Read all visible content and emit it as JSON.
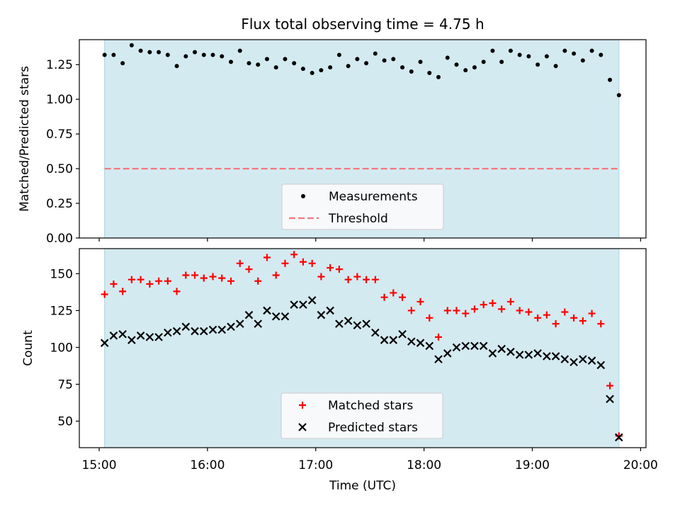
{
  "chart_data": [
    {
      "type": "scatter",
      "title": "Flux total observing time = 4.75 h",
      "xlabel": "",
      "ylabel": "Matched/Predicted stars",
      "xlim": [
        "14:49",
        "20:03"
      ],
      "ylim": [
        0,
        1.43
      ],
      "yticks": [
        "0.00",
        "0.25",
        "0.50",
        "0.75",
        "1.00",
        "1.25"
      ],
      "observing_window": [
        "15:03",
        "19:48"
      ],
      "shade_color": "#d4eaf1",
      "legend": {
        "placement": "lower center",
        "labels": [
          "Measurements",
          "Threshold"
        ]
      },
      "series": [
        {
          "name": "Measurements",
          "marker": "dot",
          "color": "#000000",
          "x": [
            "15:03",
            "15:08",
            "15:13",
            "15:18",
            "15:23",
            "15:28",
            "15:33",
            "15:38",
            "15:43",
            "15:48",
            "15:53",
            "15:58",
            "16:03",
            "16:08",
            "16:13",
            "16:18",
            "16:23",
            "16:28",
            "16:33",
            "16:38",
            "16:43",
            "16:48",
            "16:53",
            "16:58",
            "17:03",
            "17:08",
            "17:13",
            "17:18",
            "17:23",
            "17:28",
            "17:33",
            "17:38",
            "17:43",
            "17:48",
            "17:53",
            "17:58",
            "18:03",
            "18:08",
            "18:13",
            "18:18",
            "18:23",
            "18:28",
            "18:33",
            "18:38",
            "18:43",
            "18:48",
            "18:53",
            "18:58",
            "19:03",
            "19:08",
            "19:13",
            "19:18",
            "19:23",
            "19:28",
            "19:33",
            "19:38",
            "19:43",
            "19:48"
          ],
          "y": [
            1.32,
            1.32,
            1.26,
            1.39,
            1.35,
            1.34,
            1.34,
            1.32,
            1.24,
            1.31,
            1.34,
            1.32,
            1.32,
            1.31,
            1.27,
            1.35,
            1.26,
            1.25,
            1.29,
            1.23,
            1.29,
            1.26,
            1.22,
            1.19,
            1.21,
            1.23,
            1.32,
            1.24,
            1.29,
            1.26,
            1.33,
            1.28,
            1.29,
            1.23,
            1.2,
            1.27,
            1.19,
            1.16,
            1.3,
            1.25,
            1.21,
            1.23,
            1.27,
            1.35,
            1.27,
            1.35,
            1.32,
            1.31,
            1.25,
            1.31,
            1.24,
            1.35,
            1.33,
            1.28,
            1.35,
            1.32,
            1.14,
            1.03
          ]
        },
        {
          "name": "Threshold",
          "marker": "dashed-line",
          "color": "#f07a80",
          "x": [
            "15:03",
            "19:48"
          ],
          "y": [
            0.5,
            0.5
          ]
        }
      ]
    },
    {
      "type": "scatter",
      "title": "",
      "xlabel": "Time (UTC)",
      "ylabel": "Count",
      "xlim": [
        "14:49",
        "20:03"
      ],
      "ylim": [
        32,
        167
      ],
      "yticks": [
        "50",
        "75",
        "100",
        "125",
        "150"
      ],
      "xticks": [
        "15:00",
        "16:00",
        "17:00",
        "18:00",
        "19:00",
        "20:00"
      ],
      "observing_window": [
        "15:03",
        "19:48"
      ],
      "shade_color": "#d4eaf1",
      "legend": {
        "placement": "lower center",
        "labels": [
          "Matched stars",
          "Predicted stars"
        ]
      },
      "series": [
        {
          "name": "Matched stars",
          "marker": "plus",
          "color": "#ff0000",
          "x": [
            "15:03",
            "15:08",
            "15:13",
            "15:18",
            "15:23",
            "15:28",
            "15:33",
            "15:38",
            "15:43",
            "15:48",
            "15:53",
            "15:58",
            "16:03",
            "16:08",
            "16:13",
            "16:18",
            "16:23",
            "16:28",
            "16:33",
            "16:38",
            "16:43",
            "16:48",
            "16:53",
            "16:58",
            "17:03",
            "17:08",
            "17:13",
            "17:18",
            "17:23",
            "17:28",
            "17:33",
            "17:38",
            "17:43",
            "17:48",
            "17:53",
            "17:58",
            "18:03",
            "18:08",
            "18:13",
            "18:18",
            "18:23",
            "18:28",
            "18:33",
            "18:38",
            "18:43",
            "18:48",
            "18:53",
            "18:58",
            "19:03",
            "19:08",
            "19:13",
            "19:18",
            "19:23",
            "19:28",
            "19:33",
            "19:38",
            "19:43",
            "19:48"
          ],
          "y": [
            136,
            143,
            138,
            146,
            146,
            143,
            145,
            145,
            138,
            149,
            149,
            147,
            148,
            147,
            145,
            157,
            153,
            145,
            161,
            149,
            157,
            163,
            158,
            157,
            148,
            154,
            153,
            146,
            148,
            146,
            146,
            134,
            137,
            134,
            125,
            131,
            120,
            107,
            125,
            125,
            123,
            126,
            129,
            130,
            126,
            131,
            125,
            124,
            120,
            122,
            116,
            124,
            120,
            118,
            123,
            116,
            74,
            40
          ]
        },
        {
          "name": "Predicted stars",
          "marker": "x",
          "color": "#000000",
          "x": [
            "15:03",
            "15:08",
            "15:13",
            "15:18",
            "15:23",
            "15:28",
            "15:33",
            "15:38",
            "15:43",
            "15:48",
            "15:53",
            "15:58",
            "16:03",
            "16:08",
            "16:13",
            "16:18",
            "16:23",
            "16:28",
            "16:33",
            "16:38",
            "16:43",
            "16:48",
            "16:53",
            "16:58",
            "17:03",
            "17:08",
            "17:13",
            "17:18",
            "17:23",
            "17:28",
            "17:33",
            "17:38",
            "17:43",
            "17:48",
            "17:53",
            "17:58",
            "18:03",
            "18:08",
            "18:13",
            "18:18",
            "18:23",
            "18:28",
            "18:33",
            "18:38",
            "18:43",
            "18:48",
            "18:53",
            "18:58",
            "19:03",
            "19:08",
            "19:13",
            "19:18",
            "19:23",
            "19:28",
            "19:33",
            "19:38",
            "19:43",
            "19:48"
          ],
          "y": [
            103,
            108,
            109,
            105,
            108,
            107,
            107,
            110,
            111,
            114,
            111,
            111,
            112,
            112,
            114,
            116,
            122,
            116,
            125,
            121,
            121,
            129,
            129,
            132,
            122,
            125,
            116,
            118,
            115,
            116,
            110,
            105,
            105,
            109,
            104,
            103,
            101,
            92,
            96,
            100,
            101,
            101,
            101,
            96,
            99,
            97,
            95,
            95,
            96,
            94,
            94,
            92,
            90,
            92,
            91,
            88,
            65,
            39
          ]
        }
      ]
    }
  ]
}
